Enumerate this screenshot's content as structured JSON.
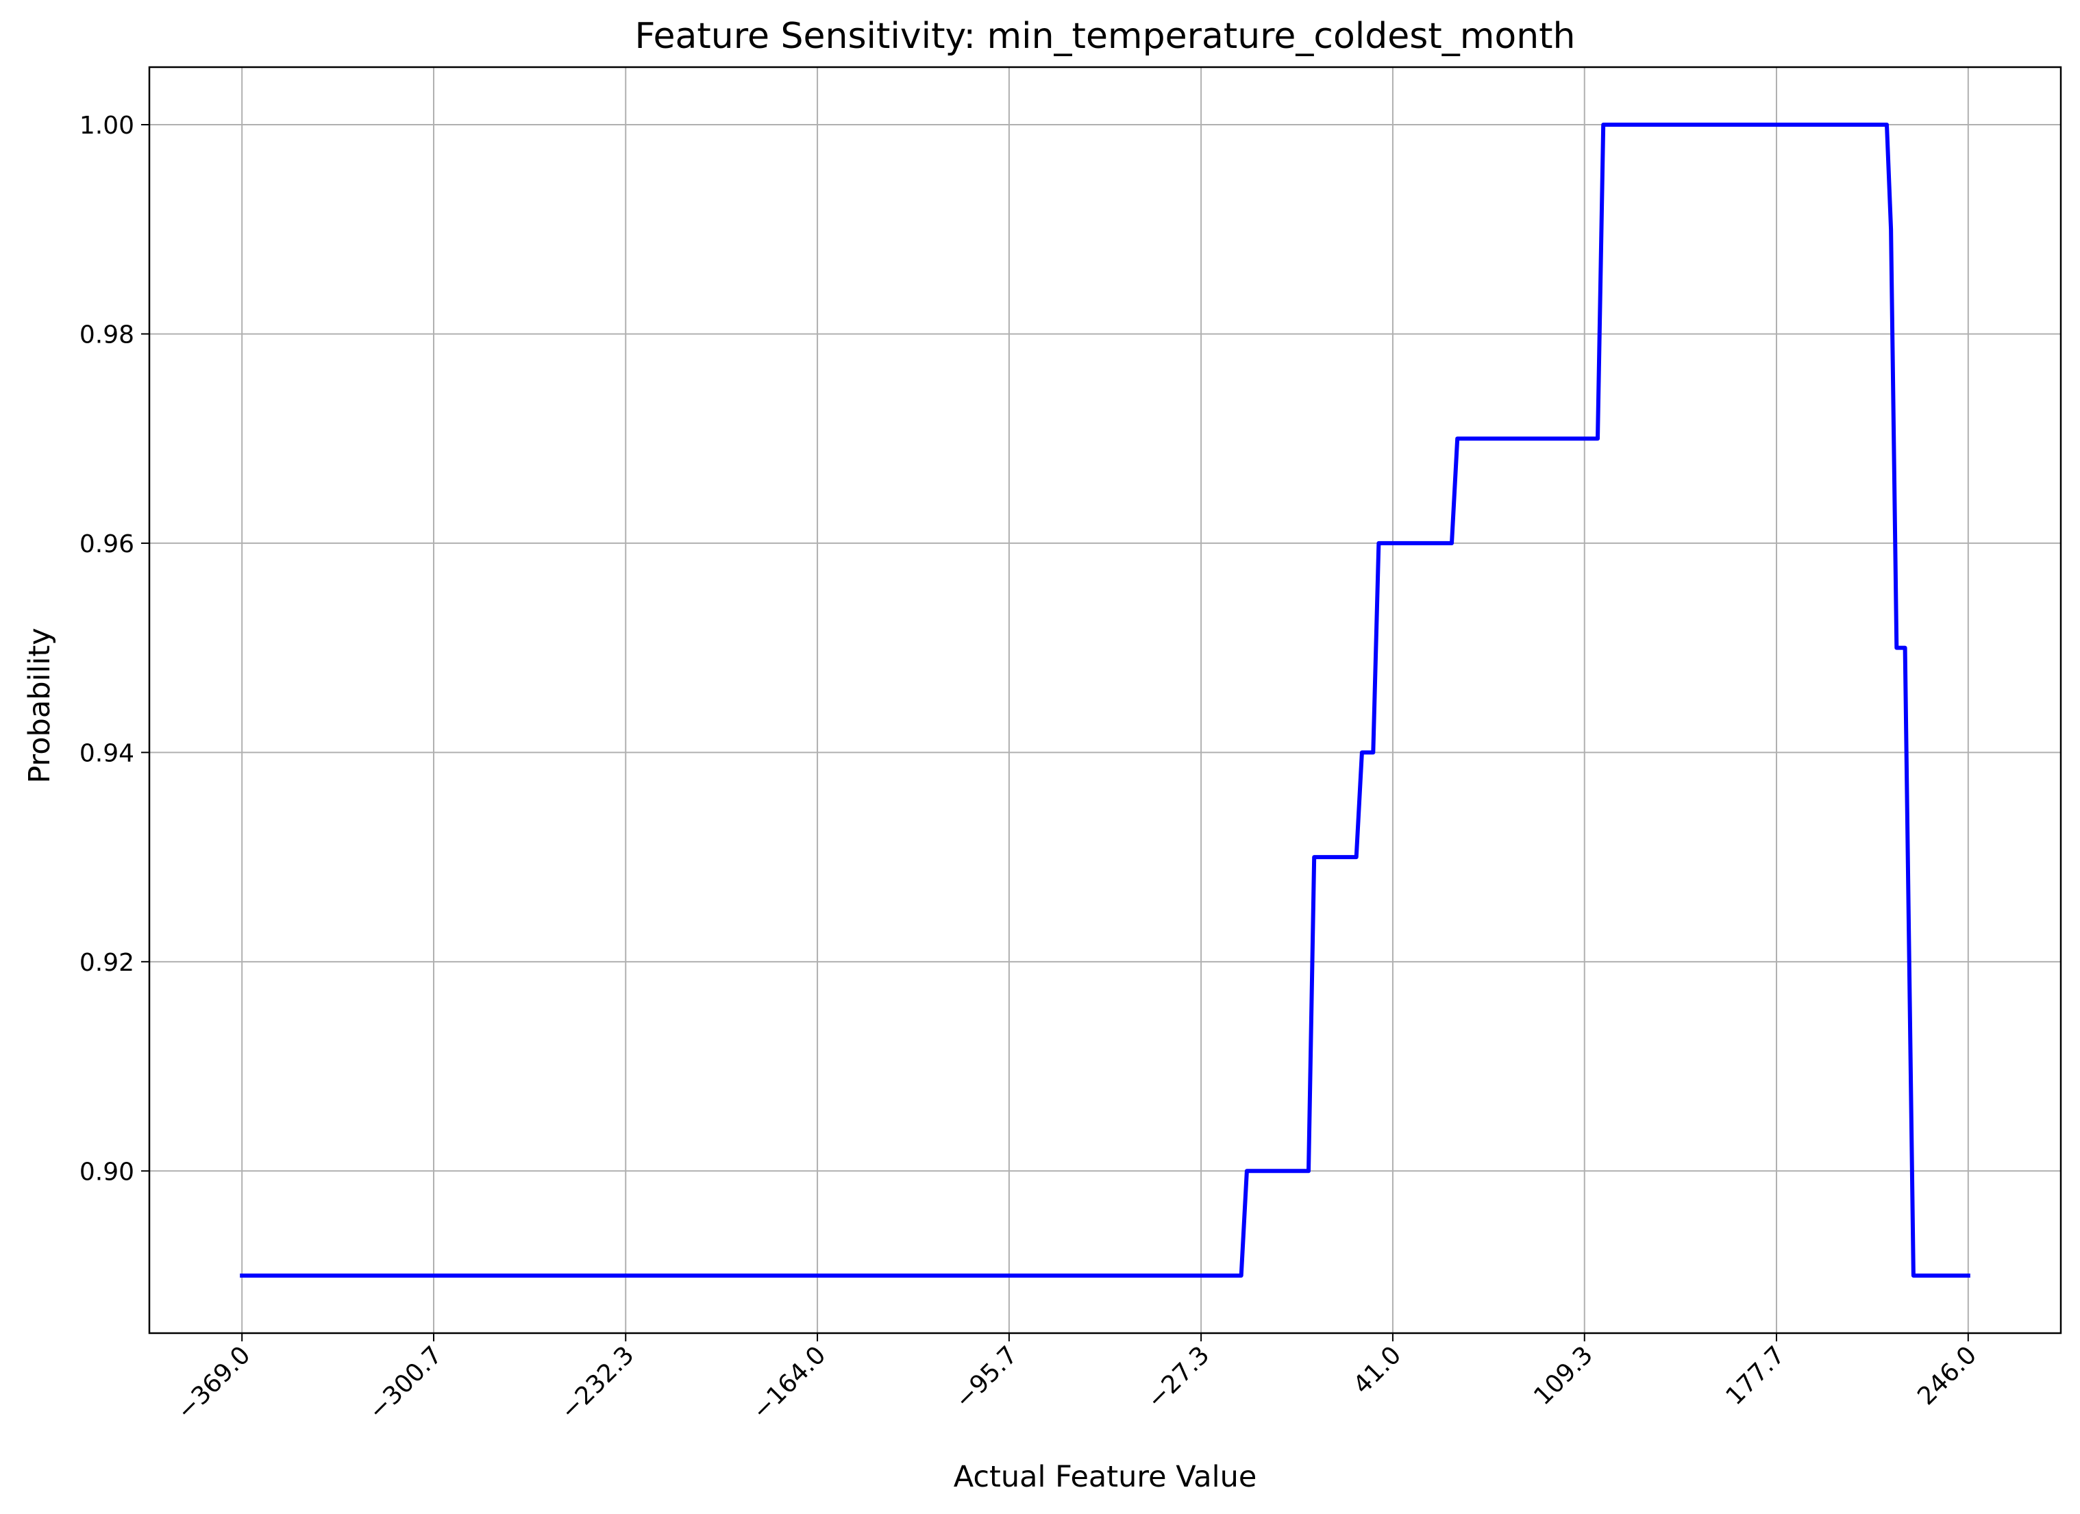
{
  "chart_data": {
    "type": "line",
    "title": "Feature Sensitivity: min_temperature_coldest_month",
    "xlabel": "Actual Feature Value",
    "ylabel": "Probability",
    "xlim": [
      -402.0,
      279.0
    ],
    "ylim": [
      0.8845,
      1.0055
    ],
    "xticks": [
      -369.0,
      -300.7,
      -232.3,
      -164.0,
      -95.7,
      -27.3,
      41.0,
      109.3,
      177.7,
      246.0
    ],
    "xtick_labels": [
      "−369.0",
      "−300.7",
      "−232.3",
      "−164.0",
      "−95.7",
      "−27.3",
      "41.0",
      "109.3",
      "177.7",
      "246.0"
    ],
    "yticks": [
      0.9,
      0.92,
      0.94,
      0.96,
      0.98,
      1.0
    ],
    "ytick_labels": [
      "0.90",
      "0.92",
      "0.94",
      "0.96",
      "0.98",
      "1.00"
    ],
    "grid": true,
    "series": [
      {
        "color": "#0000ff",
        "x": [
          -369.0,
          -13.0,
          -11.0,
          11.0,
          13.0,
          28.0,
          30.0,
          34.0,
          36.0,
          62.0,
          64.0,
          114.0,
          116.0,
          217.0,
          218.5,
          220.5,
          223.5,
          226.5,
          246.0
        ],
        "y": [
          0.89,
          0.89,
          0.9,
          0.9,
          0.93,
          0.93,
          0.94,
          0.94,
          0.96,
          0.96,
          0.97,
          0.97,
          1.0,
          1.0,
          0.99,
          0.95,
          0.95,
          0.89,
          0.89
        ]
      }
    ]
  }
}
